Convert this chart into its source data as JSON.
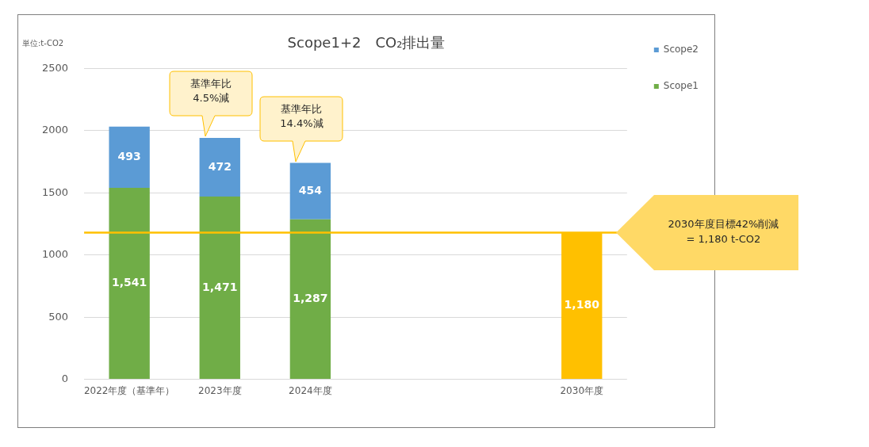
{
  "chart_data": {
    "type": "bar",
    "title": "Scope1+2　CO₂排出量",
    "categories": [
      "2022年度（基準年）",
      "2023年度",
      "2024年度",
      null,
      null,
      "2030年度"
    ],
    "series": [
      {
        "name": "Scope1",
        "color": "#70ad47",
        "values": [
          1541,
          1471,
          1287,
          null,
          null,
          null
        ],
        "value_labels": [
          "1,541",
          "1,471",
          "1,287",
          null,
          null,
          null
        ]
      },
      {
        "name": "Scope2",
        "color": "#5b9bd5",
        "values": [
          493,
          472,
          454,
          null,
          null,
          null
        ],
        "value_labels": [
          "493",
          "472",
          "454",
          null,
          null,
          null
        ]
      },
      {
        "color": "#ffc000",
        "values": [
          null,
          null,
          null,
          null,
          null,
          1180
        ],
        "value_labels": [
          null,
          null,
          null,
          null,
          null,
          "1,180"
        ]
      }
    ],
    "stacked": true,
    "ylim": [
      0,
      2500
    ],
    "yticks": [
      0,
      500,
      1000,
      1500,
      2000,
      2500
    ],
    "grid": "y",
    "legend": "top right",
    "ref_lines": [
      {
        "axis": "y",
        "value": 1180,
        "color": "#ffc000"
      }
    ],
    "annotations": [
      "単位:t-CO2",
      "基準年比\n4.5%減",
      "基準年比\n14.4%減",
      "2030年度目標42%削減\n= 1,180 t-CO2"
    ]
  }
}
